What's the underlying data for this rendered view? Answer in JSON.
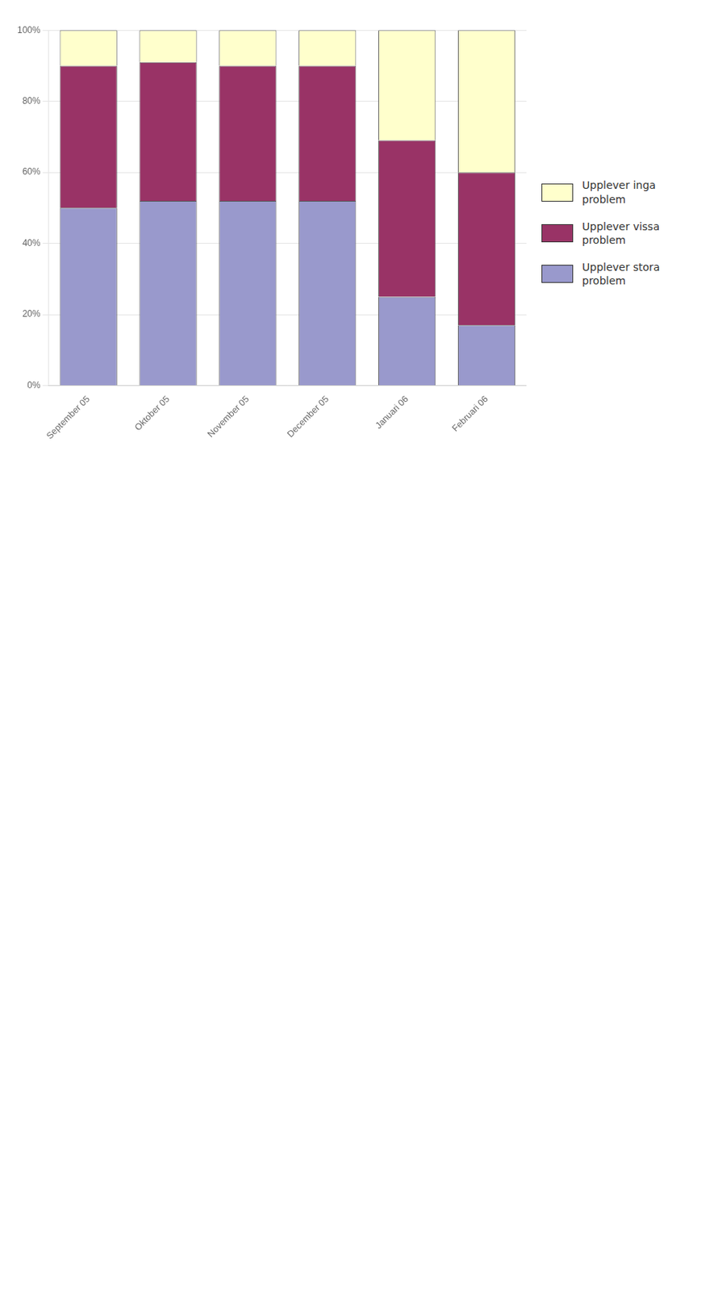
{
  "chart_data": {
    "type": "bar",
    "stacked": true,
    "categories": [
      "September 05",
      "Oktober 05",
      "November 05",
      "December 05",
      "Januari 06",
      "Februari 06"
    ],
    "series": [
      {
        "name": "Upplever stora\nproblem",
        "color": "#9999CC",
        "values": [
          50,
          52,
          52,
          52,
          25,
          17
        ]
      },
      {
        "name": "Upplever vissa\nproblem",
        "color": "#993366",
        "values": [
          40,
          39,
          38,
          38,
          44,
          43
        ]
      },
      {
        "name": "Upplever inga\nproblem",
        "color": "#FFFFCC",
        "values": [
          10,
          9,
          10,
          10,
          31,
          40
        ]
      }
    ],
    "ylim": [
      0,
      100
    ],
    "yticks": [
      {
        "value": 0,
        "label": "0%"
      },
      {
        "value": 20,
        "label": "20%"
      },
      {
        "value": 40,
        "label": "40%"
      },
      {
        "value": 60,
        "label": "60%"
      },
      {
        "value": 80,
        "label": "80%"
      },
      {
        "value": 100,
        "label": "100%"
      }
    ],
    "grid": true,
    "legend": "right"
  }
}
